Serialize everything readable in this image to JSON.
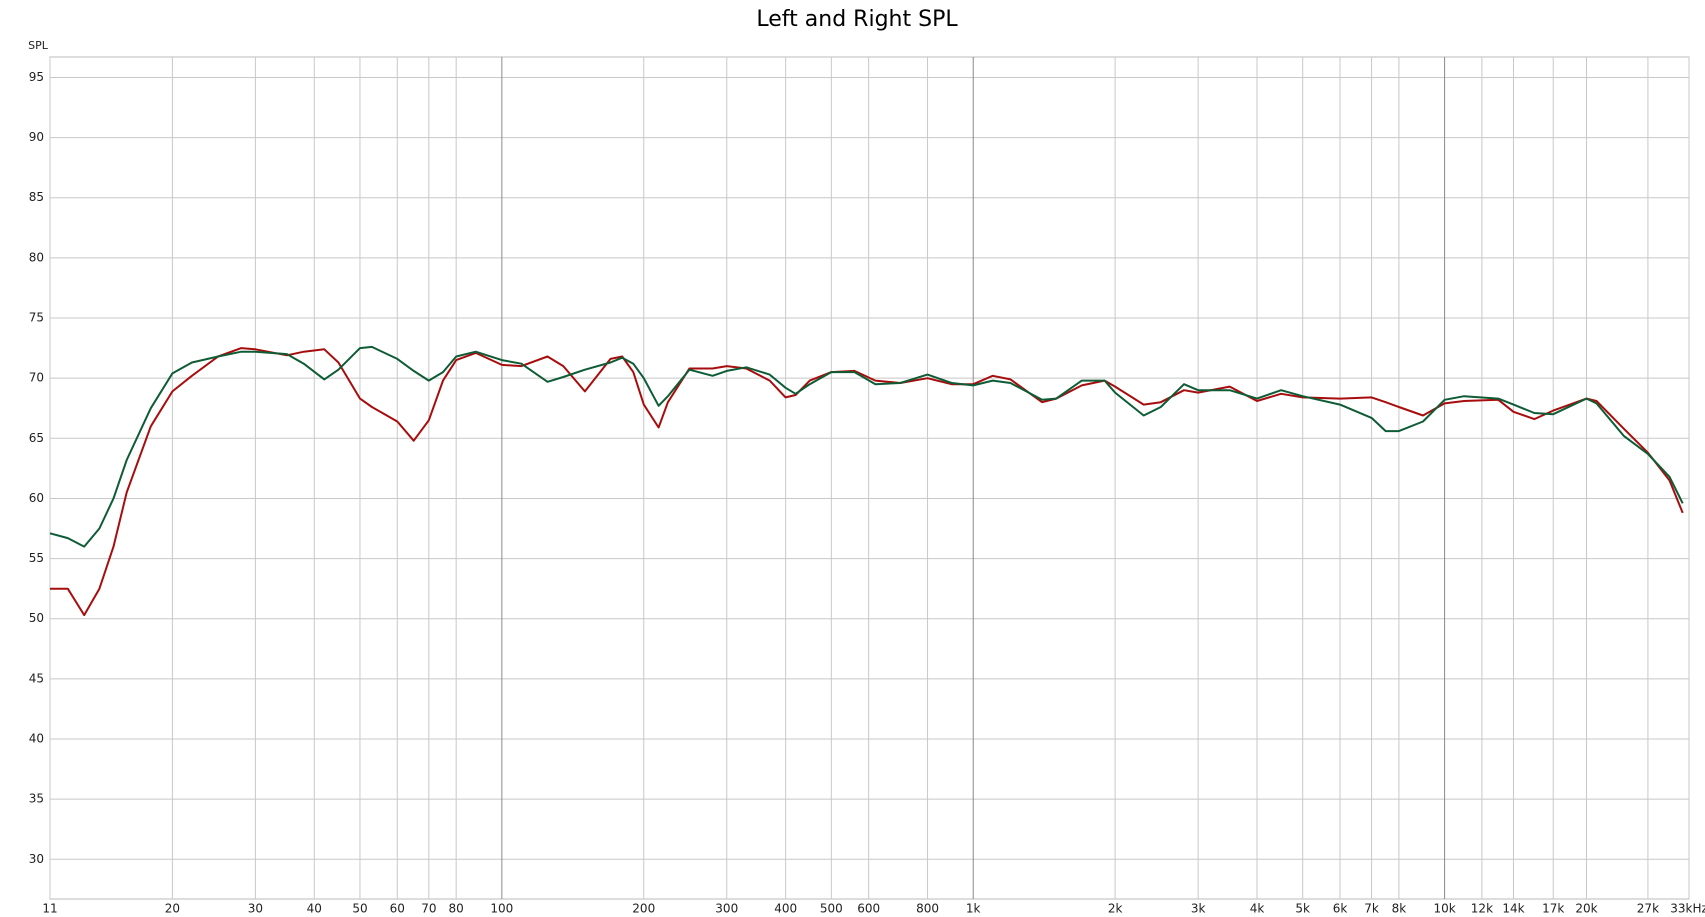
{
  "chart_data": {
    "type": "line",
    "title": "Left and Right SPL",
    "y_label": "SPL",
    "log_x": true,
    "grid": true,
    "xlim": [
      11,
      33000
    ],
    "ylim": [
      26.7,
      96.7
    ],
    "xticks": [
      11,
      20,
      30,
      40,
      50,
      60,
      70,
      80,
      100,
      200,
      300,
      400,
      500,
      600,
      800,
      {
        "value": 1000,
        "label": "1k"
      },
      {
        "value": 2000,
        "label": "2k"
      },
      {
        "value": 3000,
        "label": "3k"
      },
      {
        "value": 4000,
        "label": "4k"
      },
      {
        "value": 5000,
        "label": "5k"
      },
      {
        "value": 6000,
        "label": "6k"
      },
      {
        "value": 7000,
        "label": "7k"
      },
      {
        "value": 8000,
        "label": "8k"
      },
      {
        "value": 10000,
        "label": "10k"
      },
      {
        "value": 12000,
        "label": "12k"
      },
      {
        "value": 14000,
        "label": "14k"
      },
      {
        "value": 17000,
        "label": "17k"
      },
      {
        "value": 20000,
        "label": "20k"
      },
      {
        "value": 27000,
        "label": "27k"
      },
      {
        "value": 33000,
        "label": "33kHz"
      }
    ],
    "yticks": [
      30,
      35,
      40,
      45,
      50,
      55,
      60,
      65,
      70,
      75,
      80,
      85,
      90,
      95
    ],
    "x": [
      11,
      12,
      13,
      14,
      15,
      16,
      18,
      20,
      22,
      25,
      28,
      30,
      35,
      38,
      42,
      45,
      50,
      53,
      60,
      65,
      70,
      75,
      80,
      88,
      100,
      110,
      125,
      135,
      150,
      170,
      180,
      190,
      200,
      215,
      225,
      250,
      280,
      300,
      330,
      370,
      400,
      420,
      450,
      500,
      560,
      620,
      700,
      800,
      900,
      1000,
      1100,
      1200,
      1400,
      1500,
      1700,
      1900,
      2000,
      2300,
      2500,
      2800,
      3000,
      3500,
      4000,
      4500,
      5000,
      6000,
      7000,
      7500,
      8000,
      9000,
      10000,
      11000,
      13000,
      14000,
      15500,
      17000,
      20000,
      21000,
      24000,
      27000,
      30000,
      32000
    ],
    "series": [
      {
        "color": "#a80d0d",
        "values": [
          52.5,
          52.5,
          50.3,
          52.5,
          56,
          60.5,
          66.0,
          68.9,
          70.2,
          71.8,
          72.5,
          72.4,
          71.9,
          72.2,
          72.4,
          71.3,
          68.3,
          67.6,
          66.4,
          64.8,
          66.5,
          69.8,
          71.5,
          72.1,
          71.1,
          71.0,
          71.8,
          71.0,
          68.9,
          71.6,
          71.8,
          70.5,
          67.8,
          65.9,
          68.0,
          70.8,
          70.8,
          71.0,
          70.8,
          69.8,
          68.4,
          68.6,
          69.8,
          70.5,
          70.6,
          69.8,
          69.6,
          70.0,
          69.5,
          69.5,
          70.2,
          69.9,
          68.0,
          68.3,
          69.4,
          69.8,
          69.3,
          67.8,
          68.0,
          69.0,
          68.8,
          69.3,
          68.1,
          68.7,
          68.4,
          68.3,
          68.4,
          68.0,
          67.6,
          66.9,
          67.9,
          68.1,
          68.2,
          67.2,
          66.6,
          67.3,
          68.3,
          68.1,
          65.8,
          63.8,
          61.5,
          58.8
        ]
      },
      {
        "color": "#0e5c36",
        "values": [
          57.1,
          56.7,
          56.0,
          57.5,
          60,
          63.2,
          67.5,
          70.4,
          71.3,
          71.8,
          72.2,
          72.2,
          72.0,
          71.2,
          69.9,
          70.7,
          72.5,
          72.6,
          71.6,
          70.6,
          69.8,
          70.5,
          71.8,
          72.2,
          71.5,
          71.2,
          69.7,
          70.1,
          70.7,
          71.3,
          71.7,
          71.2,
          70.0,
          67.7,
          68.5,
          70.7,
          70.2,
          70.6,
          70.9,
          70.3,
          69.2,
          68.7,
          69.5,
          70.5,
          70.5,
          69.5,
          69.6,
          70.3,
          69.6,
          69.4,
          69.8,
          69.6,
          68.2,
          68.3,
          69.8,
          69.8,
          68.8,
          66.9,
          67.6,
          69.5,
          69.0,
          69.0,
          68.3,
          69.0,
          68.5,
          67.8,
          66.7,
          65.6,
          65.6,
          66.4,
          68.2,
          68.5,
          68.3,
          67.8,
          67.1,
          67.0,
          68.3,
          67.9,
          65.2,
          63.7,
          61.8,
          59.6
        ]
      }
    ]
  }
}
